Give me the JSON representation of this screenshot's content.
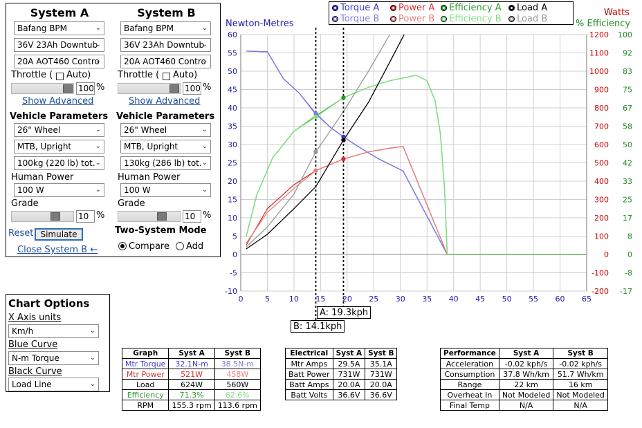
{
  "systemA": {
    "title": "System A",
    "motor": "Bafang BPM",
    "battery": "36V 23Ah Downtub",
    "controller": "20A AOT460 Contro",
    "throttle_label": "Throttle (",
    "auto_label": "Auto)",
    "throttle_value": "100",
    "throttle_level_percent": 100,
    "percent_sign": "%",
    "show_advanced": "Show Advanced",
    "vehicle_params": "Vehicle Parameters",
    "wheel": "26\"  Wheel",
    "riding": "MTB, Upright",
    "weight": "100kg (220 lb) tot.",
    "human_power_label": "Human Power",
    "human_power": "100 W",
    "grade_label": "Grade",
    "grade_value": "10",
    "reset": "Reset",
    "simulate": "Simulate",
    "close_b": "Close System B ←"
  },
  "systemB": {
    "title": "System B",
    "motor": "Bafang BPM",
    "battery": "36V 23Ah Downtub",
    "controller": "20A AOT460 Contro",
    "throttle_label": "Throttle (",
    "auto_label": "Auto)",
    "throttle_value": "100",
    "throttle_level_percent": 100,
    "percent_sign": "%",
    "show_advanced": "Show Advanced",
    "vehicle_params": "Vehicle Parameters",
    "wheel": "26\"  Wheel",
    "riding": "MTB, Upright",
    "weight": "130kg (286 lb) tot.",
    "human_power_label": "Human Power",
    "human_power": "100 W",
    "grade_label": "Grade",
    "grade_value": "10",
    "two_system_mode": "Two-System Mode",
    "compare": "Compare",
    "add": "Add",
    "mode_selected": "compare"
  },
  "chart_options": {
    "title": "Chart Options",
    "x_axis_label": "X Axis units",
    "x_axis_value": "Km/h",
    "blue_curve_label": "Blue Curve",
    "blue_curve_value": "N-m Torque",
    "black_curve_label": "Black Curve",
    "black_curve_value": "Load Line"
  },
  "legend": {
    "torqueA": "Torque A",
    "powerA": "Power A",
    "effA": "Efficiency A",
    "loadA": "Load A",
    "torqueB": "Torque B",
    "powerB": "Power B",
    "effB": "Efficiency B",
    "loadB": "Load B"
  },
  "colors": {
    "torqueA": "#3a3acf",
    "torqueB": "#7d7de0",
    "powerA": "#d83030",
    "powerB": "#e88080",
    "effA": "#2a9a2a",
    "effB": "#80e080",
    "loadA": "#000000",
    "loadB": "#999999",
    "grid": "#cfcfcf",
    "watts_axis": "#cc0000",
    "eff_axis": "#228b22",
    "nm_axis": "#1a1aa8"
  },
  "cursors": {
    "a_label": "A: 19.3kph",
    "a_x": 19.3,
    "b_label": "B: 14.1kph",
    "b_x": 14.1
  },
  "chart_data": {
    "type": "line",
    "y_left_title": "Newton-Metres",
    "y_right_title_watts": "Watts",
    "y_right_title_eff": "% Efficiency",
    "x_ticks": [
      "0",
      "5",
      "10",
      "15",
      "20",
      "25",
      "30",
      "35",
      "40",
      "45",
      "50",
      "55",
      "60",
      "65"
    ],
    "xlim": [
      0,
      65
    ],
    "y_nm_ticks": [
      "-10",
      "-5",
      "0",
      "5",
      "10",
      "15",
      "20",
      "25",
      "30",
      "35",
      "40",
      "45",
      "50",
      "55",
      "60"
    ],
    "ylim_nm": [
      -10,
      60
    ],
    "y_watts_ticks": [
      "-200",
      "-100",
      "0",
      "100",
      "200",
      "300",
      "400",
      "500",
      "600",
      "700",
      "800",
      "900",
      "1000",
      "1100",
      "1200"
    ],
    "y_eff_ticks": [
      "-17",
      "-8",
      "0",
      "8",
      "17",
      "25",
      "33",
      "42",
      "50",
      "58",
      "67",
      "75",
      "83",
      "92",
      "100"
    ],
    "grid": true,
    "legend_position": "top",
    "series": [
      {
        "name": "Torque A",
        "axis": "nm",
        "color_key": "torqueA",
        "points": [
          [
            1,
            55.5
          ],
          [
            5,
            55.3
          ],
          [
            8,
            48
          ],
          [
            11,
            44
          ],
          [
            14,
            38.5
          ],
          [
            17,
            34.5
          ],
          [
            19.3,
            32.1
          ],
          [
            22,
            29.5
          ],
          [
            26,
            26
          ],
          [
            30.5,
            22.8
          ],
          [
            38.8,
            0
          ],
          [
            65,
            0
          ]
        ]
      },
      {
        "name": "Torque B",
        "axis": "nm",
        "color_key": "torqueB",
        "points": [
          [
            1,
            55.5
          ],
          [
            5,
            55.3
          ],
          [
            8,
            48
          ],
          [
            11,
            44
          ],
          [
            14.1,
            38.5
          ],
          [
            17,
            34.5
          ],
          [
            19.3,
            32.1
          ],
          [
            22,
            29.5
          ],
          [
            26,
            26
          ],
          [
            30.5,
            22.8
          ],
          [
            38.8,
            0
          ],
          [
            65,
            0
          ]
        ]
      },
      {
        "name": "Power A",
        "axis": "watts",
        "color_key": "powerA",
        "points": [
          [
            1,
            50
          ],
          [
            5,
            250
          ],
          [
            10,
            380
          ],
          [
            14.1,
            458
          ],
          [
            19.3,
            521
          ],
          [
            24,
            560
          ],
          [
            28,
            580
          ],
          [
            30.5,
            590
          ],
          [
            38.8,
            0
          ],
          [
            65,
            0
          ]
        ]
      },
      {
        "name": "Power B",
        "axis": "watts",
        "color_key": "powerB",
        "points": [
          [
            1,
            60
          ],
          [
            5,
            230
          ],
          [
            10,
            360
          ],
          [
            14.1,
            458
          ],
          [
            19.3,
            521
          ],
          [
            24,
            560
          ],
          [
            28,
            580
          ],
          [
            30.5,
            590
          ],
          [
            38.8,
            0
          ],
          [
            65,
            0
          ]
        ]
      },
      {
        "name": "Efficiency A",
        "axis": "eff",
        "color_key": "effA",
        "points": [
          [
            1,
            8
          ],
          [
            3,
            27
          ],
          [
            6,
            44
          ],
          [
            10,
            56
          ],
          [
            14.1,
            63
          ],
          [
            19.3,
            71.3
          ],
          [
            24,
            76
          ],
          [
            28,
            79
          ],
          [
            31,
            80.5
          ],
          [
            33,
            81.5
          ],
          [
            35,
            79
          ],
          [
            36.5,
            70
          ],
          [
            37.5,
            55
          ],
          [
            38.3,
            30
          ],
          [
            38.8,
            0
          ],
          [
            65,
            0
          ]
        ]
      },
      {
        "name": "Efficiency B",
        "axis": "eff",
        "color_key": "effB",
        "points": [
          [
            1,
            8
          ],
          [
            3,
            27
          ],
          [
            6,
            44
          ],
          [
            10,
            56
          ],
          [
            14.1,
            62.6
          ],
          [
            19.3,
            71.3
          ],
          [
            24,
            76
          ],
          [
            28,
            79
          ],
          [
            31,
            80.5
          ],
          [
            33,
            81.5
          ],
          [
            35,
            79
          ],
          [
            36.5,
            70
          ],
          [
            37.5,
            55
          ],
          [
            38.3,
            30
          ],
          [
            38.8,
            0
          ],
          [
            65,
            0
          ]
        ]
      },
      {
        "name": "Load A",
        "axis": "watts",
        "color_key": "loadA",
        "points": [
          [
            1,
            30
          ],
          [
            5,
            110
          ],
          [
            10,
            250
          ],
          [
            14.1,
            370
          ],
          [
            19.3,
            624
          ],
          [
            24,
            830
          ],
          [
            28,
            1050
          ],
          [
            32.5,
            1300
          ]
        ]
      },
      {
        "name": "Load B",
        "axis": "watts",
        "color_key": "loadB",
        "points": [
          [
            1,
            40
          ],
          [
            5,
            150
          ],
          [
            10,
            330
          ],
          [
            14.1,
            560
          ],
          [
            19.3,
            780
          ],
          [
            24,
            1000
          ],
          [
            28,
            1200
          ],
          [
            29.5,
            1300
          ]
        ]
      }
    ],
    "markers": [
      {
        "series": "Torque A",
        "x": 19.3,
        "y": 32.1,
        "axis": "nm",
        "color_key": "torqueA"
      },
      {
        "series": "Torque B",
        "x": 14.1,
        "y": 38.5,
        "axis": "nm",
        "color_key": "torqueB"
      },
      {
        "series": "Power A",
        "x": 19.3,
        "y": 521,
        "axis": "watts",
        "color_key": "powerA"
      },
      {
        "series": "Power B",
        "x": 14.1,
        "y": 458,
        "axis": "watts",
        "color_key": "powerB"
      },
      {
        "series": "Efficiency A",
        "x": 19.3,
        "y": 71.3,
        "axis": "eff",
        "color_key": "effA"
      },
      {
        "series": "Efficiency B",
        "x": 14.1,
        "y": 62.6,
        "axis": "eff",
        "color_key": "effB"
      },
      {
        "series": "Load A",
        "x": 19.3,
        "y": 624,
        "axis": "watts",
        "color_key": "loadA"
      },
      {
        "series": "Load B",
        "x": 14.1,
        "y": 560,
        "axis": "watts",
        "color_key": "loadB"
      }
    ]
  },
  "graph_table": {
    "headers": [
      "Graph",
      "Syst A",
      "Syst B"
    ],
    "rows": [
      [
        "Mtr Torque",
        "32.1N-m",
        "38.5N-m"
      ],
      [
        "Mtr Power",
        "521W",
        "458W"
      ],
      [
        "Load",
        "624W",
        "560W"
      ],
      [
        "Efficiency",
        "71.3%",
        "62.6%"
      ],
      [
        "RPM",
        "155.3 rpm",
        "113.6 rpm"
      ]
    ]
  },
  "electrical_table": {
    "headers": [
      "Electrical",
      "Syst A",
      "Syst B"
    ],
    "rows": [
      [
        "Mtr Amps",
        "29.5A",
        "35.1A"
      ],
      [
        "Batt Power",
        "731W",
        "731W"
      ],
      [
        "Batt Amps",
        "20.0A",
        "20.0A"
      ],
      [
        "Batt Volts",
        "36.6V",
        "36.6V"
      ]
    ]
  },
  "performance_table": {
    "headers": [
      "Performance",
      "Syst A",
      "Syst B"
    ],
    "rows": [
      [
        "Acceleration",
        "-0.02 kph/s",
        "-0.02 kph/s"
      ],
      [
        "Consumption",
        "37.8 Wh/km",
        "51.7 Wh/km"
      ],
      [
        "Range",
        "22 km",
        "16 km"
      ],
      [
        "Overheat In",
        "Not Modeled",
        "Not Modeled"
      ],
      [
        "Final Temp",
        "N/A",
        "N/A"
      ]
    ]
  }
}
